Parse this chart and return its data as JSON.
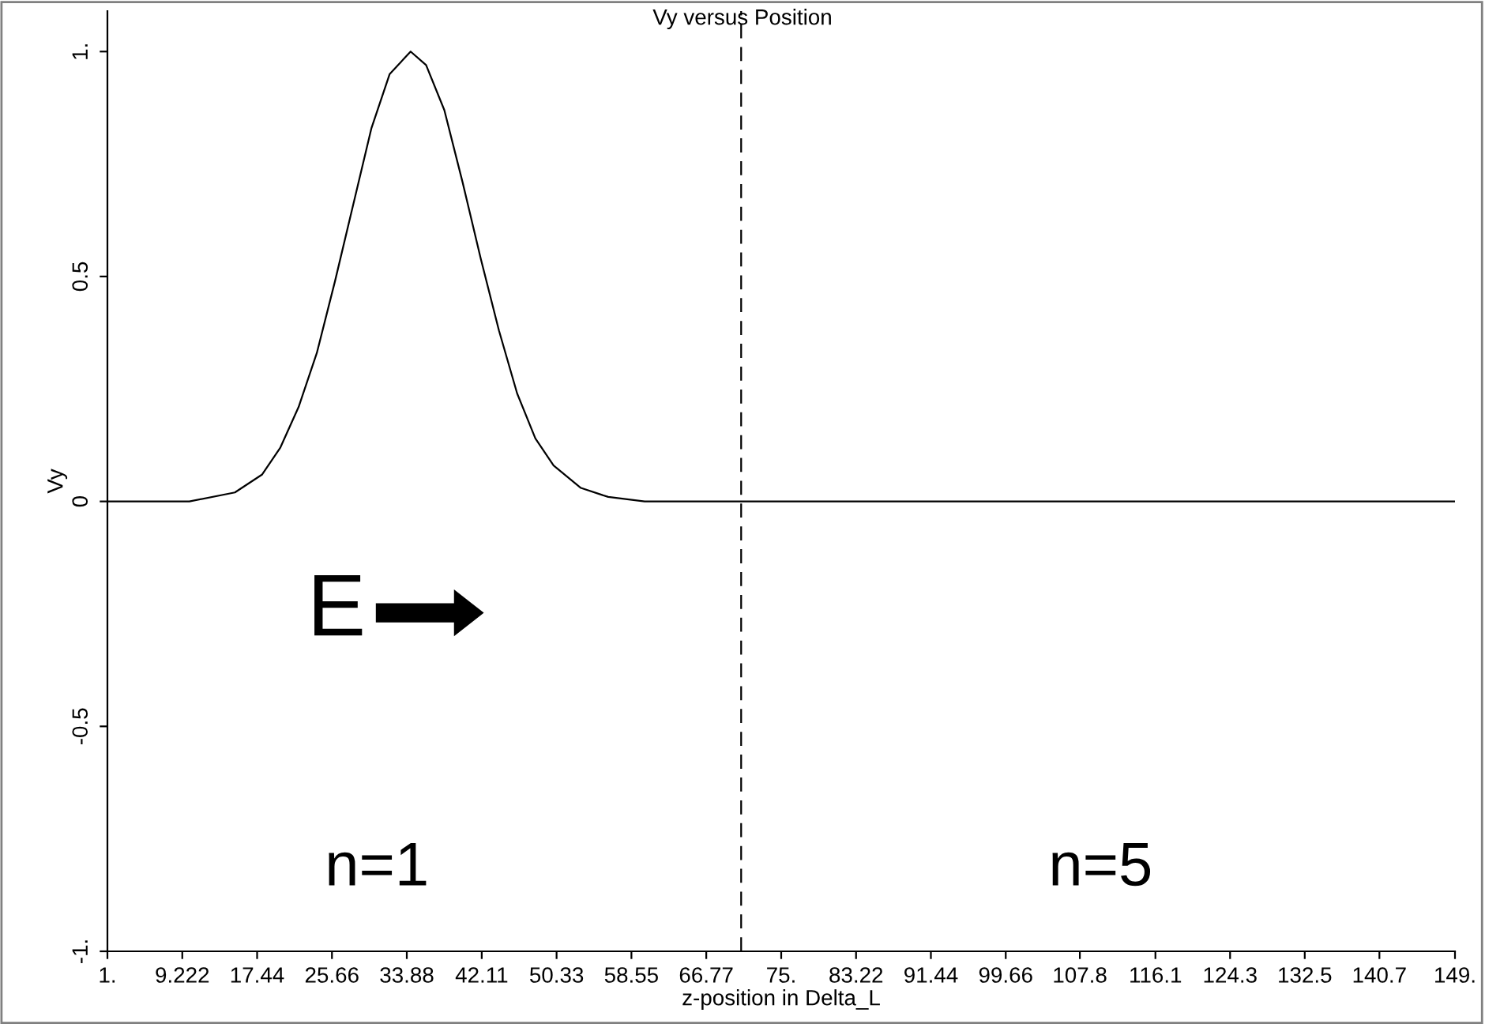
{
  "chart_data": {
    "type": "line",
    "title": "Vy versus Position",
    "xlabel": "z-position in Delta_L",
    "ylabel": "Vy",
    "x": [
      1,
      10,
      15,
      18,
      20,
      22,
      24,
      26,
      28,
      30,
      32,
      34.3,
      36,
      38,
      40,
      42,
      44,
      46,
      48,
      50,
      53,
      56,
      60,
      65,
      70,
      80,
      100,
      120,
      149
    ],
    "series": [
      {
        "color": "#000000",
        "values": [
          0,
          0.0,
          0.02,
          0.06,
          0.12,
          0.21,
          0.33,
          0.49,
          0.66,
          0.83,
          0.95,
          1.0,
          0.97,
          0.87,
          0.71,
          0.54,
          0.38,
          0.24,
          0.14,
          0.08,
          0.03,
          0.01,
          0,
          0,
          0,
          0,
          0,
          0,
          0
        ]
      }
    ],
    "xlim": [
      1,
      149
    ],
    "ylim": [
      -1,
      1.09
    ],
    "xticks": [
      {
        "value": 1,
        "label": "1."
      },
      9.222,
      17.44,
      25.66,
      33.88,
      42.11,
      50.33,
      58.55,
      66.77,
      {
        "value": 75,
        "label": "75."
      },
      83.22,
      91.44,
      99.66,
      107.8,
      116.1,
      124.3,
      132.5,
      140.7,
      {
        "value": 149,
        "label": "149."
      }
    ],
    "yticks": [
      {
        "value": -1,
        "label": "-1."
      },
      -0.5,
      0,
      0.5,
      {
        "value": 1,
        "label": "1."
      }
    ],
    "ref_lines": [
      {
        "axis": "x",
        "value": 70.6,
        "color": "#000000",
        "line_style": "dashed"
      }
    ],
    "annotations": [
      "E",
      "n=1",
      "n=5"
    ],
    "grid": false,
    "legend": false,
    "marker": "none",
    "line_style": "solid"
  }
}
